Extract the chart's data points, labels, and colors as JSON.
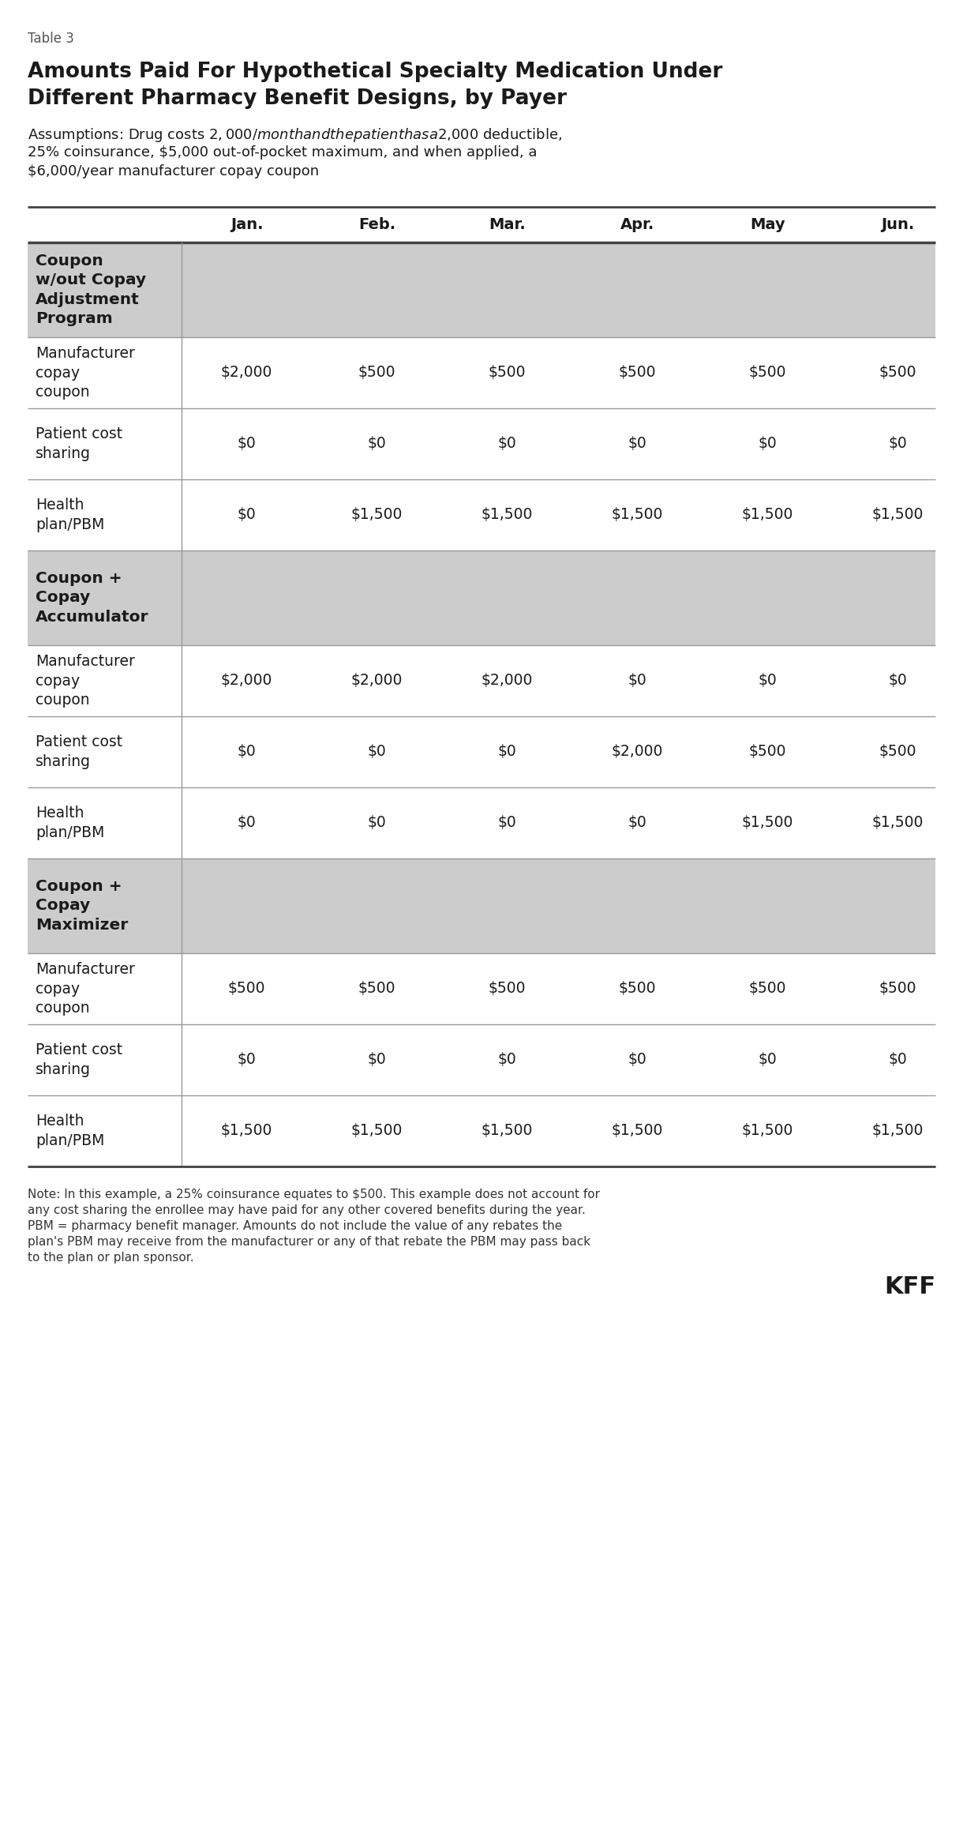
{
  "table_label": "Table 3",
  "title_line1": "Amounts Paid For Hypothetical Specialty Medication Under",
  "title_line2": "Different Pharmacy Benefit Designs, by Payer",
  "assumptions_line1": "Assumptions: Drug costs $2,000/month and the patient has a $2,000 deductible,",
  "assumptions_line2": "25% coinsurance, $5,000 out-of-pocket maximum, and when applied, a",
  "assumptions_line3": "$6,000/year manufacturer copay coupon",
  "columns": [
    "",
    "Jan.",
    "Feb.",
    "Mar.",
    "Apr.",
    "May",
    "Jun."
  ],
  "sections": [
    {
      "header": "Coupon\nw/out Copay\nAdjustment\nProgram",
      "rows": [
        {
          "label": "Manufacturer\ncopay\ncoupon",
          "values": [
            "$2,000",
            "$500",
            "$500",
            "$500",
            "$500",
            "$500"
          ]
        },
        {
          "label": "Patient cost\nsharing",
          "values": [
            "$0",
            "$0",
            "$0",
            "$0",
            "$0",
            "$0"
          ]
        },
        {
          "label": "Health\nplan/PBM",
          "values": [
            "$0",
            "$1,500",
            "$1,500",
            "$1,500",
            "$1,500",
            "$1,500"
          ]
        }
      ]
    },
    {
      "header": "Coupon +\nCopay\nAccumulator",
      "rows": [
        {
          "label": "Manufacturer\ncopay\ncoupon",
          "values": [
            "$2,000",
            "$2,000",
            "$2,000",
            "$0",
            "$0",
            "$0"
          ]
        },
        {
          "label": "Patient cost\nsharing",
          "values": [
            "$0",
            "$0",
            "$0",
            "$2,000",
            "$500",
            "$500"
          ]
        },
        {
          "label": "Health\nplan/PBM",
          "values": [
            "$0",
            "$0",
            "$0",
            "$0",
            "$1,500",
            "$1,500"
          ]
        }
      ]
    },
    {
      "header": "Coupon +\nCopay\nMaximizer",
      "rows": [
        {
          "label": "Manufacturer\ncopay\ncoupon",
          "values": [
            "$500",
            "$500",
            "$500",
            "$500",
            "$500",
            "$500"
          ]
        },
        {
          "label": "Patient cost\nsharing",
          "values": [
            "$0",
            "$0",
            "$0",
            "$0",
            "$0",
            "$0"
          ]
        },
        {
          "label": "Health\nplan/PBM",
          "values": [
            "$1,500",
            "$1,500",
            "$1,500",
            "$1,500",
            "$1,500",
            "$1,500"
          ]
        }
      ]
    }
  ],
  "note_line1": "Note: In this example, a 25% coinsurance equates to $500. This example does not account for",
  "note_line2": "any cost sharing the enrollee may have paid for any other covered benefits during the year.",
  "note_line3": "PBM = pharmacy benefit manager. Amounts do not include the value of any rebates the",
  "note_line4": "plan's PBM may receive from the manufacturer or any of that rebate the PBM may pass back",
  "note_line5": "to the plan or plan sponsor.",
  "header_bg": "#cccccc",
  "border_color": "#999999",
  "thick_border_color": "#444444",
  "text_color": "#1a1a1a",
  "note_color": "#333333"
}
